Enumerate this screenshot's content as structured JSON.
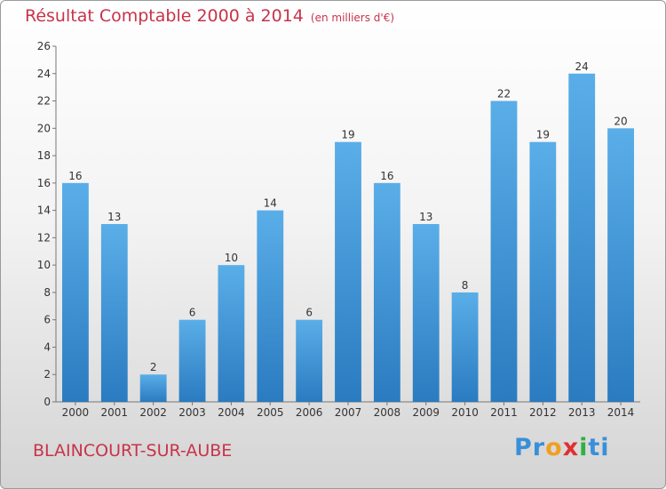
{
  "header": {
    "title": "Résultat Comptable 2000 à 2014",
    "unit": "(en milliers d'€)"
  },
  "footer": {
    "commune": "BLAINCOURT-SUR-AUBE",
    "logo": [
      "P",
      "r",
      "o",
      "x",
      "i",
      "t",
      "i"
    ]
  },
  "colors": {
    "title": "#c8334a",
    "bar_light": "#5aaee8",
    "bar_dark": "#2a7bc0",
    "logo": [
      "#3a8fd8",
      "#3a8fd8",
      "#f0a020",
      "#e03030",
      "#30b040",
      "#3a8fd8",
      "#3a8fd8"
    ]
  },
  "chart_data": {
    "type": "bar",
    "categories": [
      "2000",
      "2001",
      "2002",
      "2003",
      "2004",
      "2005",
      "2006",
      "2007",
      "2008",
      "2009",
      "2010",
      "2011",
      "2012",
      "2013",
      "2014"
    ],
    "values": [
      16,
      13,
      2,
      6,
      10,
      14,
      6,
      19,
      16,
      13,
      8,
      22,
      19,
      24,
      20
    ],
    "ylim": [
      0,
      26
    ],
    "yticks": [
      0,
      2,
      4,
      6,
      8,
      10,
      12,
      14,
      16,
      18,
      20,
      22,
      24,
      26
    ],
    "grid": false,
    "data_labels": true
  }
}
